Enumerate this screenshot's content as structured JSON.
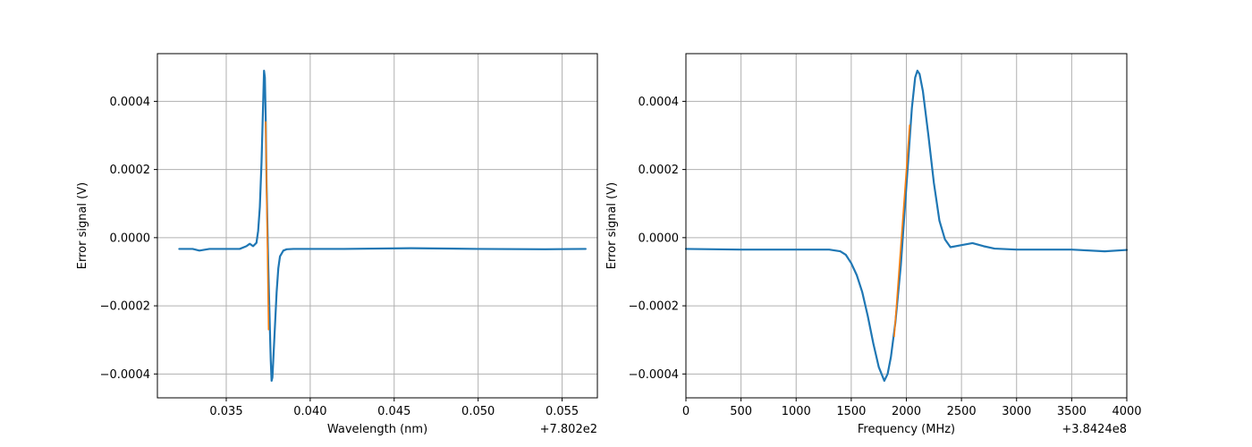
{
  "chart_data": [
    {
      "type": "line",
      "title": "",
      "xlabel": "Wavelength (nm)",
      "ylabel": "Error signal (V)",
      "x_offset_label": "+7.802e2",
      "xlim": [
        0.0309,
        0.0571
      ],
      "ylim": [
        -0.00047,
        0.00054
      ],
      "xticks": [
        0.035,
        0.04,
        0.045,
        0.05,
        0.055
      ],
      "xtick_labels": [
        "0.035",
        "0.040",
        "0.045",
        "0.050",
        "0.055"
      ],
      "yticks": [
        -0.0004,
        -0.0002,
        0.0,
        0.0002,
        0.0004
      ],
      "ytick_labels": [
        "−0.0004",
        "−0.0002",
        "0.0000",
        "0.0002",
        "0.0004"
      ],
      "grid": true,
      "series": [
        {
          "color": "#1f77b4",
          "x": [
            0.0322,
            0.033,
            0.0334,
            0.034,
            0.035,
            0.0358,
            0.0362,
            0.0364,
            0.0366,
            0.0368,
            0.0369,
            0.037,
            0.0371,
            0.0372,
            0.03725,
            0.0373,
            0.03735,
            0.0374,
            0.0375,
            0.0376,
            0.03765,
            0.0377,
            0.03775,
            0.0378,
            0.0379,
            0.038,
            0.0381,
            0.0382,
            0.0384,
            0.0386,
            0.039,
            0.042,
            0.046,
            0.05,
            0.054,
            0.0564
          ],
          "y": [
            -3.3e-05,
            -3.3e-05,
            -3.8e-05,
            -3.3e-05,
            -3.3e-05,
            -3.3e-05,
            -2.5e-05,
            -1.8e-05,
            -2.5e-05,
            -1.5e-05,
            2e-05,
            9e-05,
            0.00022,
            0.0004,
            0.00049,
            0.00047,
            0.00035,
            0.00016,
            -8e-05,
            -0.00027,
            -0.00036,
            -0.00042,
            -0.00041,
            -0.00036,
            -0.00026,
            -0.00016,
            -9e-05,
            -5.5e-05,
            -3.8e-05,
            -3.4e-05,
            -3.3e-05,
            -3.3e-05,
            -3.1e-05,
            -3.3e-05,
            -3.4e-05,
            -3.3e-05
          ]
        },
        {
          "color": "#ff7f0e",
          "x": [
            0.03735,
            0.03752
          ],
          "y": [
            0.00034,
            -0.00027
          ]
        }
      ]
    },
    {
      "type": "line",
      "title": "",
      "xlabel": "Frequency (MHz)",
      "ylabel": "Error signal (V)",
      "x_offset_label": "+3.8424e8",
      "xlim": [
        0,
        4000
      ],
      "ylim": [
        -0.00047,
        0.00054
      ],
      "xticks": [
        0,
        500,
        1000,
        1500,
        2000,
        2500,
        3000,
        3500,
        4000
      ],
      "xtick_labels": [
        "0",
        "500",
        "1000",
        "1500",
        "2000",
        "2500",
        "3000",
        "3500",
        "4000"
      ],
      "yticks": [
        -0.0004,
        -0.0002,
        0.0,
        0.0002,
        0.0004
      ],
      "ytick_labels": [
        "−0.0004",
        "−0.0002",
        "0.0000",
        "0.0002",
        "0.0004"
      ],
      "grid": true,
      "series": [
        {
          "color": "#1f77b4",
          "x": [
            0,
            500,
            1000,
            1300,
            1400,
            1450,
            1500,
            1550,
            1600,
            1650,
            1700,
            1750,
            1800,
            1830,
            1860,
            1900,
            1950,
            2000,
            2050,
            2080,
            2100,
            2120,
            2150,
            2200,
            2250,
            2300,
            2350,
            2400,
            2500,
            2600,
            2700,
            2800,
            3000,
            3500,
            3800,
            4000
          ],
          "y": [
            -3.3e-05,
            -3.5e-05,
            -3.5e-05,
            -3.5e-05,
            -4e-05,
            -5e-05,
            -7.5e-05,
            -0.00011,
            -0.00016,
            -0.00023,
            -0.00031,
            -0.00038,
            -0.00042,
            -0.0004,
            -0.00035,
            -0.00025,
            -8e-05,
            0.00015,
            0.00038,
            0.00047,
            0.00049,
            0.00048,
            0.00043,
            0.0003,
            0.00016,
            5e-05,
            -5e-06,
            -2.8e-05,
            -2.2e-05,
            -1.6e-05,
            -2.5e-05,
            -3.2e-05,
            -3.5e-05,
            -3.5e-05,
            -4e-05,
            -3.6e-05
          ]
        },
        {
          "color": "#ff7f0e",
          "x": [
            1890,
            2030
          ],
          "y": [
            -0.00029,
            0.00033
          ]
        }
      ]
    }
  ]
}
